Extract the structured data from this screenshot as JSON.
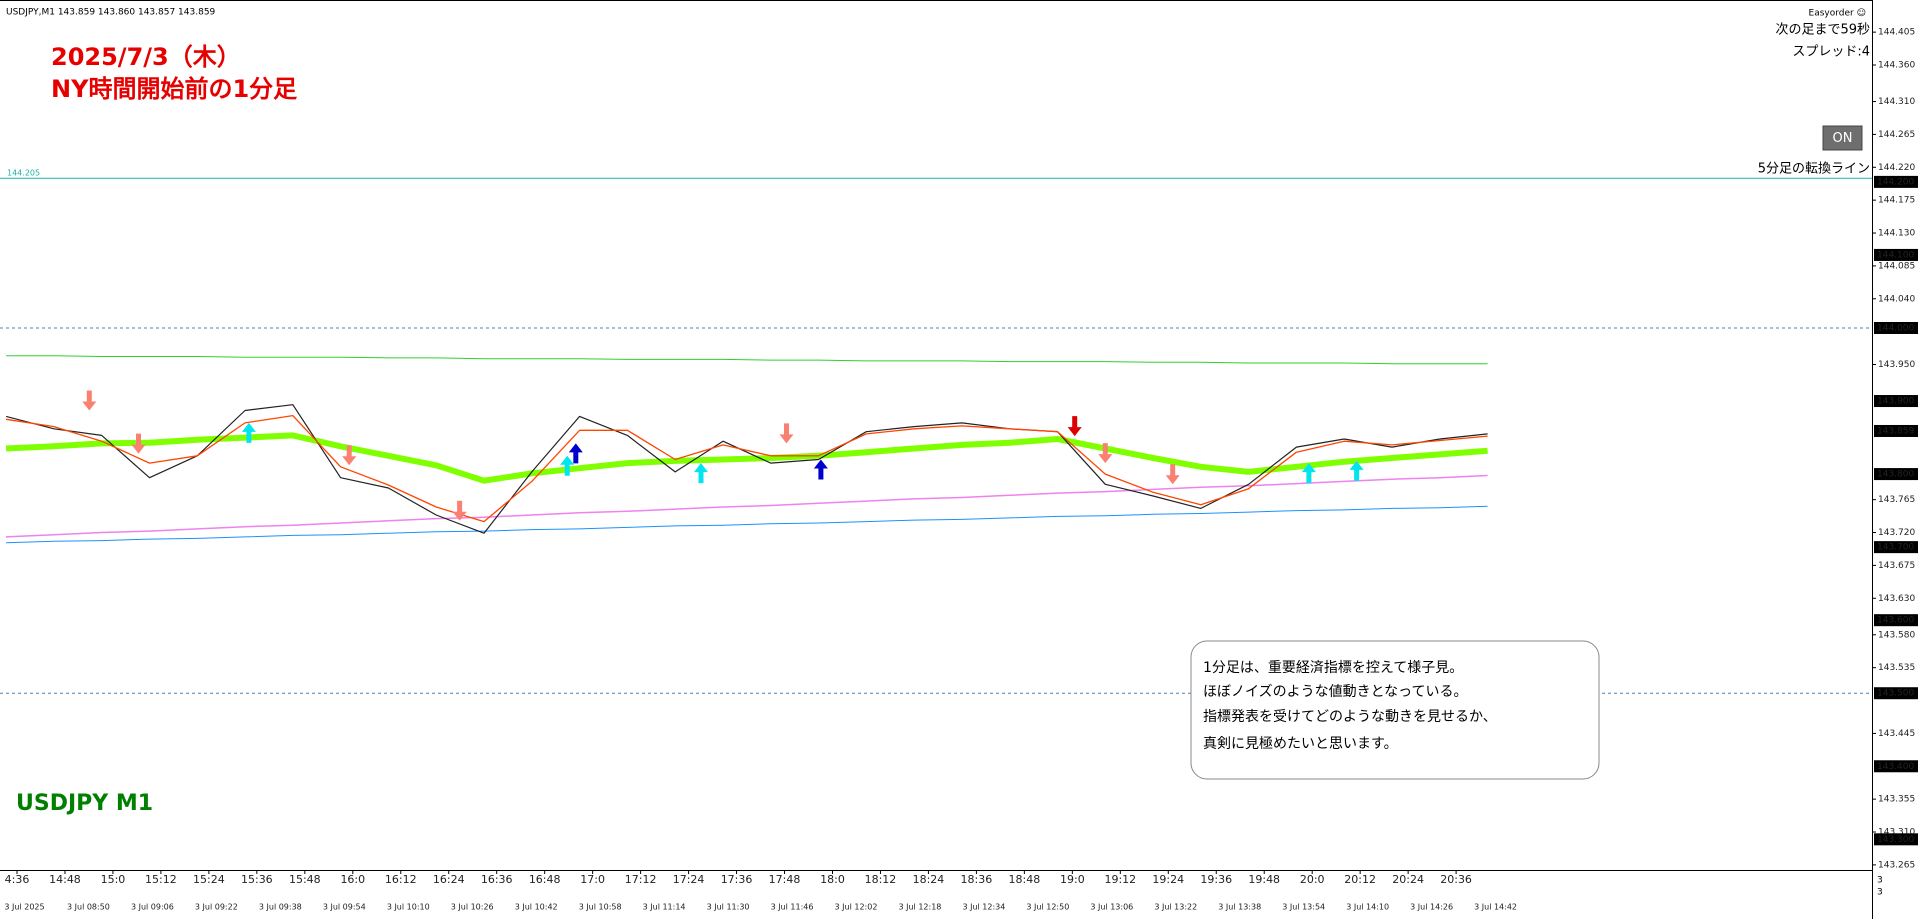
{
  "header": {
    "symbol_info": "USDJPY,M1  143.859 143.860 143.857 143.859",
    "easyorder": "Easyorder ☺",
    "countdown": "次の足まで59秒",
    "spread": "スプレッド:4",
    "button": "ON"
  },
  "annotations": {
    "title_line1": "2025/7/3（木）",
    "title_line2": "NY時間開始前の1分足",
    "symbol_label": "USDJPY M1",
    "note": [
      "1分足は、重要経済指標を控えて様子見。",
      "ほぼノイズのような値動きとなっている。",
      "指標発表を受けてどのような動きを見せるか、",
      "真剣に見極めたいと思います。"
    ],
    "corner": [
      "3",
      "3"
    ]
  },
  "chart_data": {
    "type": "line",
    "ylim": [
      143.258,
      144.449
    ],
    "yticks": [
      144.405,
      {
        "value": 144.36,
        "label": "144.360"
      },
      {
        "value": 144.31,
        "label": "144.310"
      },
      144.265,
      {
        "value": 144.22,
        "label": "144.220"
      },
      144.175,
      {
        "value": 144.13,
        "label": "144.130"
      },
      144.085,
      {
        "value": 144.04,
        "label": "144.040"
      },
      {
        "value": 143.95,
        "label": "143.950"
      },
      143.765,
      {
        "value": 143.72,
        "label": "143.720"
      },
      143.675,
      {
        "value": 143.63,
        "label": "143.630"
      },
      {
        "value": 143.58,
        "label": "143.580"
      },
      143.535,
      143.445,
      143.355,
      {
        "value": 143.31,
        "label": "143.310"
      },
      143.265
    ],
    "price_labels": [
      {
        "value": 144.2,
        "label": "144.200"
      },
      {
        "value": 144.1,
        "label": "144.100"
      },
      {
        "value": 144.0,
        "label": "144.000"
      },
      {
        "value": 143.9,
        "label": "143.900"
      },
      143.859,
      {
        "value": 143.8,
        "label": "143.800"
      },
      {
        "value": 143.7,
        "label": "143.700"
      },
      {
        "value": 143.6,
        "label": "143.600"
      },
      {
        "value": 143.5,
        "label": "143.500"
      },
      {
        "value": 143.4,
        "label": "143.400"
      },
      {
        "value": 143.3,
        "label": "143.300"
      }
    ],
    "time_labels_top": [
      "4:36",
      "14:48",
      "15:0",
      "15:12",
      "15:24",
      "15:36",
      "15:48",
      "16:0",
      "16:12",
      "16:24",
      "16:36",
      "16:48",
      "17:0",
      "17:12",
      "17:24",
      "17:36",
      "17:48",
      "18:0",
      "18:12",
      "18:24",
      "18:36",
      "18:48",
      "19:0",
      "19:12",
      "19:24",
      "19:36",
      "19:48",
      "20:0",
      "20:12",
      "20:24",
      "20:36"
    ],
    "time_labels_bottom": [
      "3 Jul 2025",
      "3 Jul 08:50",
      "3 Jul 09:06",
      "3 Jul 09:22",
      "3 Jul 09:38",
      "3 Jul 09:54",
      "3 Jul 10:10",
      "3 Jul 10:26",
      "3 Jul 10:42",
      "3 Jul 10:58",
      "3 Jul 11:14",
      "3 Jul 11:30",
      "3 Jul 11:46",
      "3 Jul 12:02",
      "3 Jul 12:18",
      "3 Jul 12:34",
      "3 Jul 12:50",
      "3 Jul 13:06",
      "3 Jul 13:22",
      "3 Jul 13:38",
      "3 Jul 13:54",
      "3 Jul 14:10",
      "3 Jul 14:26",
      "3 Jul 14:42"
    ],
    "series": [
      {
        "color": "#32cd32",
        "width": 1,
        "values": [
          143.962,
          143.962,
          143.961,
          143.961,
          143.961,
          143.96,
          143.96,
          143.96,
          143.959,
          143.959,
          143.958,
          143.958,
          143.958,
          143.957,
          143.957,
          143.957,
          143.956,
          143.956,
          143.955,
          143.955,
          143.955,
          143.954,
          143.954,
          143.954,
          143.953,
          143.953,
          143.952,
          143.952,
          143.952,
          143.951,
          143.951,
          143.951
        ]
      },
      {
        "color": "#ee82ee",
        "width": 1.5,
        "values": [
          143.714,
          143.717,
          143.72,
          143.722,
          143.725,
          143.728,
          143.73,
          143.733,
          143.736,
          143.739,
          143.741,
          143.744,
          143.747,
          143.749,
          143.752,
          143.755,
          143.757,
          143.76,
          143.763,
          143.766,
          143.768,
          143.771,
          143.774,
          143.776,
          143.779,
          143.782,
          143.784,
          143.787,
          143.79,
          143.793,
          143.795,
          143.798
        ]
      },
      {
        "color": "#1e90ff",
        "width": 1,
        "values": [
          143.706,
          143.708,
          143.709,
          143.711,
          143.712,
          143.714,
          143.716,
          143.717,
          143.719,
          143.721,
          143.722,
          143.724,
          143.725,
          143.727,
          143.729,
          143.73,
          143.732,
          143.733,
          143.735,
          143.737,
          143.738,
          143.74,
          143.742,
          143.743,
          143.745,
          143.746,
          143.748,
          143.75,
          143.751,
          143.753,
          143.754,
          143.756
        ]
      },
      {
        "color": "#7fff00",
        "width": 6,
        "values": [
          143.835,
          143.838,
          143.842,
          143.843,
          143.847,
          143.85,
          143.853,
          143.838,
          143.825,
          143.812,
          143.791,
          143.801,
          143.808,
          143.815,
          143.818,
          143.82,
          143.822,
          143.825,
          143.83,
          143.835,
          143.84,
          143.843,
          143.848,
          143.835,
          143.822,
          143.81,
          143.803,
          143.81,
          143.817,
          143.822,
          143.827,
          143.832
        ]
      },
      {
        "color": "#222222",
        "width": 1.2,
        "values": [
          143.879,
          143.862,
          143.853,
          143.795,
          143.825,
          143.887,
          143.895,
          143.795,
          143.781,
          143.744,
          143.719,
          143.803,
          143.879,
          143.853,
          143.803,
          143.845,
          143.815,
          143.82,
          143.858,
          143.865,
          143.87,
          143.862,
          143.858,
          143.786,
          143.77,
          143.753,
          143.786,
          143.837,
          143.848,
          143.837,
          143.848,
          143.855
        ]
      },
      {
        "color": "#ff4500",
        "width": 1.3,
        "values": [
          143.875,
          143.865,
          143.845,
          143.815,
          143.825,
          143.87,
          143.88,
          143.81,
          143.785,
          143.755,
          143.735,
          143.79,
          143.86,
          143.86,
          143.82,
          143.84,
          143.825,
          143.825,
          143.855,
          143.862,
          143.866,
          143.862,
          143.858,
          143.8,
          143.775,
          143.758,
          143.78,
          143.83,
          143.845,
          143.84,
          143.846,
          143.852
        ]
      }
    ],
    "hlines": [
      {
        "value": 144.205,
        "color": "#20b2aa",
        "style": "solid",
        "label": "5分足の転換ライン"
      },
      {
        "value": 144.0,
        "color": "#4682b4",
        "style": "dotted"
      },
      {
        "value": 143.5,
        "color": "#4682b4",
        "style": "dotted"
      }
    ],
    "arrows": [
      {
        "x": 1.74,
        "value": 143.887,
        "direction": "down",
        "color": "#fa8072"
      },
      {
        "x": 2.77,
        "value": 143.828,
        "direction": "down",
        "color": "#fa8072"
      },
      {
        "x": 7.18,
        "value": 143.812,
        "direction": "down",
        "color": "#fa8072"
      },
      {
        "x": 9.49,
        "value": 143.736,
        "direction": "down",
        "color": "#fa8072"
      },
      {
        "x": 16.33,
        "value": 143.842,
        "direction": "down",
        "color": "#fa8072"
      },
      {
        "x": 23.0,
        "value": 143.815,
        "direction": "down",
        "color": "#fa8072"
      },
      {
        "x": 24.41,
        "value": 143.786,
        "direction": "down",
        "color": "#fa8072"
      },
      {
        "x": 5.08,
        "value": 143.87,
        "direction": "up",
        "color": "#00e5ee"
      },
      {
        "x": 11.74,
        "value": 143.825,
        "direction": "up",
        "color": "#00e5ee"
      },
      {
        "x": 14.54,
        "value": 143.815,
        "direction": "up",
        "color": "#00e5ee"
      },
      {
        "x": 27.26,
        "value": 143.815,
        "direction": "up",
        "color": "#00e5ee"
      },
      {
        "x": 28.26,
        "value": 143.818,
        "direction": "up",
        "color": "#00e5ee"
      },
      {
        "x": 11.92,
        "value": 143.842,
        "direction": "up",
        "color": "#0000cd"
      },
      {
        "x": 17.05,
        "value": 143.82,
        "direction": "up",
        "color": "#0000cd"
      },
      {
        "x": 22.36,
        "value": 143.852,
        "direction": "down",
        "color": "#dc0000"
      }
    ]
  }
}
